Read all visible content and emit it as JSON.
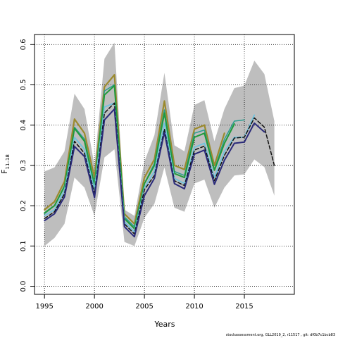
{
  "chart_data": {
    "type": "line",
    "xlabel": "Years",
    "ylabel_main": "F",
    "ylabel_sub": "11–18",
    "xlim": [
      1994,
      2020
    ],
    "ylim": [
      -0.02,
      0.625
    ],
    "xticks": [
      1995,
      2000,
      2005,
      2010,
      2015
    ],
    "yticks": [
      0.0,
      0.1,
      0.2,
      0.3,
      0.4,
      0.5,
      0.6
    ],
    "grid": true,
    "grid_style": "dotted",
    "band": {
      "x": [
        1995,
        1996,
        1997,
        1998,
        1999,
        2000,
        2001,
        2002,
        2003,
        2004,
        2005,
        2006,
        2007,
        2008,
        2009,
        2010,
        2011,
        2012,
        2013,
        2014,
        2015,
        2016,
        2017,
        2018
      ],
      "upper": [
        0.285,
        0.295,
        0.335,
        0.478,
        0.44,
        0.3,
        0.565,
        0.605,
        0.19,
        0.175,
        0.31,
        0.375,
        0.53,
        0.35,
        0.335,
        0.45,
        0.462,
        0.36,
        0.44,
        0.492,
        0.498,
        0.56,
        0.527,
        0.41
      ],
      "lower": [
        0.1,
        0.12,
        0.155,
        0.27,
        0.245,
        0.175,
        0.32,
        0.34,
        0.11,
        0.1,
        0.17,
        0.205,
        0.295,
        0.195,
        0.185,
        0.255,
        0.265,
        0.195,
        0.245,
        0.275,
        0.278,
        0.315,
        0.296,
        0.225
      ],
      "color": "#bebebe"
    },
    "series": [
      {
        "color": "#9b8a2e",
        "width": 2.2,
        "dash": "",
        "x": [
          1995,
          1996,
          1997,
          1998,
          1999,
          2000,
          2001,
          2002,
          2003,
          2004,
          2005,
          2006,
          2007,
          2008,
          2009,
          2010,
          2011,
          2012,
          2013
        ],
        "values": [
          0.19,
          0.21,
          0.26,
          0.415,
          0.38,
          0.27,
          0.495,
          0.525,
          0.18,
          0.155,
          0.27,
          0.315,
          0.46,
          0.3,
          0.29,
          0.39,
          0.4,
          0.3,
          0.38
        ]
      },
      {
        "color": "#2a9d8f",
        "width": 1.5,
        "dash": "",
        "x": [
          1995,
          1996,
          1997,
          1998,
          1999,
          2000,
          2001,
          2002,
          2003,
          2004,
          2005,
          2006,
          2007,
          2008,
          2009,
          2010,
          2011,
          2012,
          2013,
          2014,
          2015
        ],
        "values": [
          0.18,
          0.2,
          0.25,
          0.395,
          0.365,
          0.255,
          0.485,
          0.5,
          0.172,
          0.148,
          0.255,
          0.305,
          0.438,
          0.285,
          0.275,
          0.38,
          0.388,
          0.29,
          0.365,
          0.41,
          0.413
        ]
      },
      {
        "color": "#1f9a3b",
        "width": 2.0,
        "dash": "",
        "x": [
          1995,
          1996,
          1997,
          1998,
          1999,
          2000,
          2001,
          2002,
          2003,
          2004,
          2005,
          2006,
          2007,
          2008,
          2009,
          2010,
          2011,
          2012,
          2013,
          2014
        ],
        "values": [
          0.182,
          0.2,
          0.248,
          0.392,
          0.36,
          0.25,
          0.475,
          0.498,
          0.168,
          0.143,
          0.255,
          0.3,
          0.43,
          0.28,
          0.27,
          0.37,
          0.38,
          0.288,
          0.355,
          0.403
        ]
      },
      {
        "color": "#6fc3df",
        "width": 1.8,
        "dash": "",
        "x": [
          1995,
          1996,
          1997,
          1998,
          1999,
          2000,
          2001,
          2002,
          2003,
          2004,
          2005,
          2006,
          2007,
          2008,
          2009,
          2010,
          2011,
          2012,
          2013,
          2014,
          2015,
          2016
        ],
        "values": [
          0.175,
          0.19,
          0.238,
          0.37,
          0.34,
          0.24,
          0.445,
          0.455,
          0.16,
          0.135,
          0.245,
          0.285,
          0.405,
          0.268,
          0.255,
          0.345,
          0.355,
          0.27,
          0.335,
          0.37,
          0.37,
          0.425
        ]
      },
      {
        "color": "#111111",
        "width": 1.5,
        "dash": "5,3",
        "x": [
          1995,
          1996,
          1997,
          1998,
          1999,
          2000,
          2001,
          2002,
          2003,
          2004,
          2005,
          2006,
          2007,
          2008,
          2009,
          2010,
          2011,
          2012,
          2013,
          2014,
          2015,
          2016,
          2017,
          2018
        ],
        "values": [
          0.168,
          0.185,
          0.23,
          0.36,
          0.33,
          0.23,
          0.43,
          0.455,
          0.155,
          0.13,
          0.24,
          0.275,
          0.39,
          0.262,
          0.25,
          0.338,
          0.348,
          0.262,
          0.325,
          0.368,
          0.37,
          0.418,
          0.395,
          0.3
        ]
      },
      {
        "color": "#2a2a7a",
        "width": 2.0,
        "dash": "",
        "x": [
          1995,
          1996,
          1997,
          1998,
          1999,
          2000,
          2001,
          2002,
          2003,
          2004,
          2005,
          2006,
          2007,
          2008,
          2009,
          2010,
          2011,
          2012,
          2013,
          2014,
          2015,
          2016,
          2017
        ],
        "values": [
          0.163,
          0.18,
          0.222,
          0.347,
          0.322,
          0.22,
          0.413,
          0.44,
          0.148,
          0.123,
          0.225,
          0.268,
          0.382,
          0.255,
          0.242,
          0.328,
          0.338,
          0.253,
          0.313,
          0.355,
          0.358,
          0.405,
          0.383
        ]
      }
    ]
  },
  "footer": "stockassessment.org, GLL2019_2, r11517 , git: df0b7c1bcb83"
}
